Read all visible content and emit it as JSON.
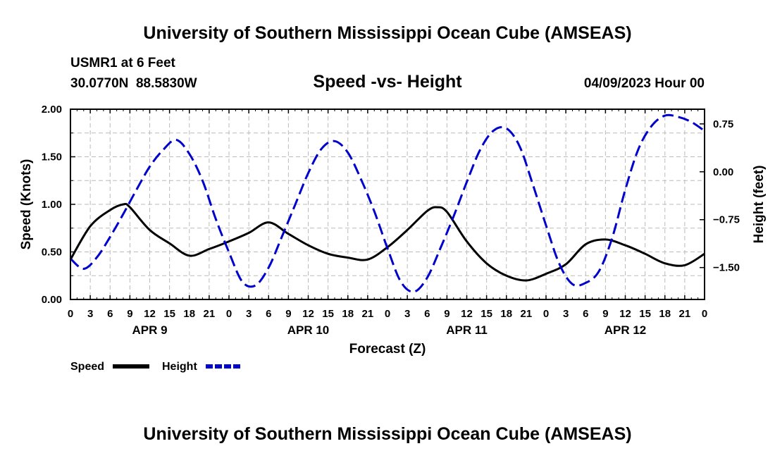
{
  "titles": {
    "main": "University of Southern Mississippi Ocean Cube (AMSEAS)",
    "footer": "University of Southern Mississippi Ocean Cube (AMSEAS)",
    "station": "USMR1 at 6 Feet",
    "coords": "30.0770N  88.5830W",
    "center": "Speed -vs- Height",
    "date": "04/09/2023 Hour 00"
  },
  "legend": {
    "speed": "Speed",
    "height": "Height"
  },
  "colors": {
    "speed": "#000000",
    "height": "#0000cc",
    "grid": "#bbbbbb"
  },
  "chart_data": {
    "type": "line",
    "title": "Speed -vs- Height",
    "xlabel": "Forecast (Z)",
    "ylabel": "Speed (Knots)",
    "y2label": "Height (feet)",
    "xlim": [
      0,
      96
    ],
    "ylim": [
      0,
      2
    ],
    "y2lim": [
      -2.0,
      0.98
    ],
    "x_ticks": [
      0,
      3,
      6,
      9,
      12,
      15,
      18,
      21,
      24,
      27,
      30,
      33,
      36,
      39,
      42,
      45,
      48,
      51,
      54,
      57,
      60,
      63,
      66,
      69,
      72,
      75,
      78,
      81,
      84,
      87,
      90,
      93,
      96
    ],
    "x_tick_labels": [
      "0",
      "3",
      "6",
      "9",
      "12",
      "15",
      "18",
      "21",
      "0",
      "3",
      "6",
      "9",
      "12",
      "15",
      "18",
      "21",
      "0",
      "3",
      "6",
      "9",
      "12",
      "15",
      "18",
      "21",
      "0",
      "3",
      "6",
      "9",
      "12",
      "15",
      "18",
      "21",
      "0"
    ],
    "y_ticks": [
      0,
      0.5,
      1.0,
      1.5,
      2.0
    ],
    "y_tick_labels": [
      "0.00",
      "0.50",
      "1.00",
      "1.50",
      "2.00"
    ],
    "y2_ticks": [
      -1.5,
      -0.75,
      0,
      0.75
    ],
    "y2_tick_labels": [
      "−1.50",
      "−0.75",
      "0.00",
      "0.75"
    ],
    "day_labels": [
      {
        "x": 12,
        "label": "APR 9"
      },
      {
        "x": 36,
        "label": "APR 10"
      },
      {
        "x": 60,
        "label": "APR 11"
      },
      {
        "x": 84,
        "label": "APR 12"
      }
    ],
    "grid": true,
    "series": [
      {
        "name": "Speed",
        "axis": "left",
        "style": "solid",
        "x": [
          0,
          3,
          6,
          8,
          9,
          12,
          15,
          18,
          21,
          24,
          27,
          30,
          33,
          36,
          39,
          42,
          45,
          48,
          51,
          54,
          55.5,
          57,
          60,
          63,
          66,
          69,
          72,
          75,
          78,
          81,
          84,
          87,
          90,
          93,
          96
        ],
        "values": [
          0.42,
          0.77,
          0.94,
          1.0,
          0.97,
          0.73,
          0.59,
          0.46,
          0.53,
          0.61,
          0.7,
          0.81,
          0.69,
          0.57,
          0.48,
          0.44,
          0.42,
          0.55,
          0.73,
          0.93,
          0.97,
          0.92,
          0.61,
          0.38,
          0.25,
          0.2,
          0.27,
          0.37,
          0.58,
          0.63,
          0.57,
          0.48,
          0.38,
          0.36,
          0.48
        ]
      },
      {
        "name": "Height",
        "axis": "right",
        "style": "dashed",
        "x": [
          0,
          2,
          4,
          6,
          8,
          10,
          12,
          14,
          16,
          18,
          20,
          22,
          24,
          26,
          28,
          30,
          32,
          34,
          36,
          38,
          40,
          42,
          44,
          46,
          48,
          50,
          52,
          54,
          56,
          58,
          60,
          62,
          64,
          66,
          68,
          70,
          72,
          74,
          76,
          78,
          80,
          82,
          84,
          86,
          88,
          90,
          92,
          94,
          96
        ],
        "values": [
          -1.36,
          -1.52,
          -1.34,
          -1.02,
          -0.66,
          -0.28,
          0.08,
          0.34,
          0.5,
          0.28,
          -0.14,
          -0.74,
          -1.26,
          -1.72,
          -1.78,
          -1.5,
          -1.02,
          -0.52,
          -0.02,
          0.36,
          0.48,
          0.3,
          -0.12,
          -0.62,
          -1.2,
          -1.72,
          -1.88,
          -1.66,
          -1.2,
          -0.7,
          -0.16,
          0.34,
          0.64,
          0.68,
          0.4,
          -0.2,
          -0.84,
          -1.44,
          -1.76,
          -1.74,
          -1.56,
          -1.04,
          -0.28,
          0.36,
          0.72,
          0.88,
          0.86,
          0.78,
          0.64
        ]
      }
    ]
  }
}
